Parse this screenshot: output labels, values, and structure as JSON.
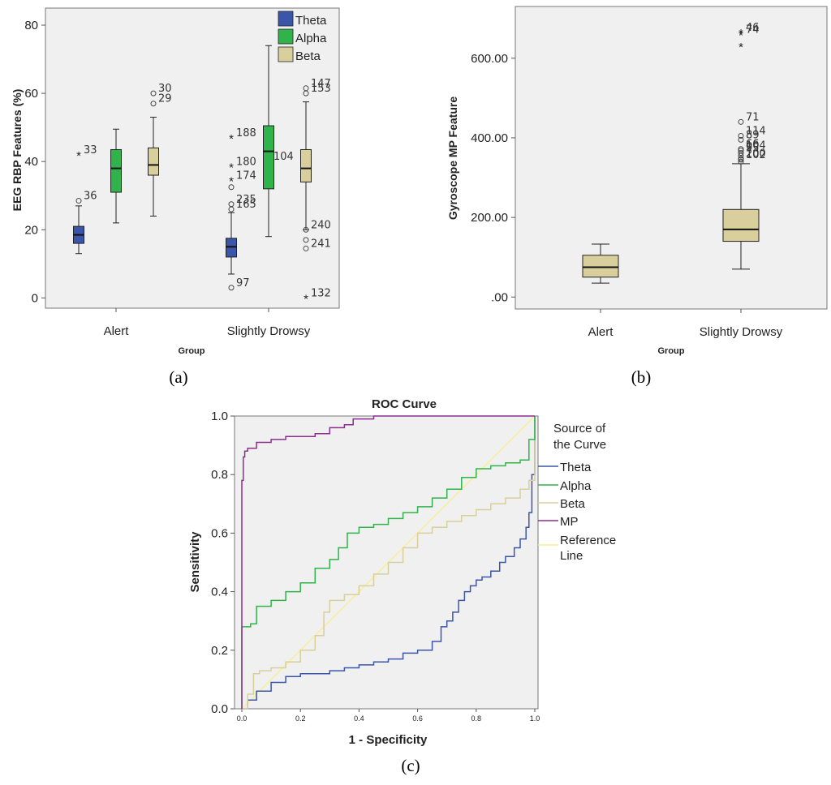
{
  "figure": {
    "panel_labels": [
      "(a)",
      "(b)",
      "(c)"
    ]
  },
  "colors": {
    "theta": "#3b56a8",
    "alpha": "#2fb34a",
    "beta": "#d8cf9c",
    "mp": "#8a2f8f",
    "reference": "#f7f08c",
    "plot_bg": "#f0f0f0"
  },
  "chart_data": [
    {
      "id": "a",
      "type": "boxplot",
      "ylabel": "EEG RBP Features (%)",
      "xlabel": "Group",
      "categories": [
        "Alert",
        "Slightly Drowsy"
      ],
      "ylim": [
        -3,
        85
      ],
      "yticks": [
        0,
        20,
        40,
        60,
        80
      ],
      "legend": {
        "position": "top-right",
        "entries": [
          "Theta",
          "Alpha",
          "Beta"
        ]
      },
      "series": [
        {
          "name": "Theta",
          "boxes": [
            {
              "category": "Alert",
              "whisker_low": 13,
              "q1": 16,
              "median": 18.5,
              "q3": 21,
              "whisker_high": 27,
              "outliers": [
                {
                  "value": 28.5,
                  "marker": "circle",
                  "label": "36"
                },
                {
                  "value": 42,
                  "marker": "star",
                  "label": "33"
                }
              ]
            },
            {
              "category": "Slightly Drowsy",
              "whisker_low": 7,
              "q1": 12,
              "median": 15,
              "q3": 17.5,
              "whisker_high": 25,
              "outliers": [
                {
                  "value": 3,
                  "marker": "circle",
                  "label": "97"
                },
                {
                  "value": 26,
                  "marker": "circle",
                  "label": "165"
                },
                {
                  "value": 27.5,
                  "marker": "circle",
                  "label": "235"
                },
                {
                  "value": 32.5,
                  "marker": "circle",
                  "label": ""
                },
                {
                  "value": 34.5,
                  "marker": "star",
                  "label": "174"
                },
                {
                  "value": 38.5,
                  "marker": "star",
                  "label": "180"
                },
                {
                  "value": 47,
                  "marker": "star",
                  "label": "188"
                }
              ]
            }
          ]
        },
        {
          "name": "Alpha",
          "boxes": [
            {
              "category": "Alert",
              "whisker_low": 22,
              "q1": 31,
              "median": 38,
              "q3": 43.5,
              "whisker_high": 49.5,
              "outliers": []
            },
            {
              "category": "Slightly Drowsy",
              "whisker_low": 18,
              "q1": 32,
              "median": 43,
              "q3": 50.5,
              "whisker_high": 74,
              "outliers": [
                {
                  "value": 40,
                  "marker": "none",
                  "label": "104"
                }
              ]
            }
          ]
        },
        {
          "name": "Beta",
          "boxes": [
            {
              "category": "Alert",
              "whisker_low": 24,
              "q1": 36,
              "median": 39,
              "q3": 44,
              "whisker_high": 53,
              "outliers": [
                {
                  "value": 57,
                  "marker": "circle",
                  "label": "29"
                },
                {
                  "value": 60,
                  "marker": "circle",
                  "label": "30"
                }
              ]
            },
            {
              "category": "Slightly Drowsy",
              "whisker_low": 20,
              "q1": 34,
              "median": 38,
              "q3": 43.5,
              "whisker_high": 57.5,
              "outliers": [
                {
                  "value": 0,
                  "marker": "star",
                  "label": "132"
                },
                {
                  "value": 14.5,
                  "marker": "circle",
                  "label": "241"
                },
                {
                  "value": 17,
                  "marker": "circle",
                  "label": ""
                },
                {
                  "value": 20,
                  "marker": "circle",
                  "label": "240"
                },
                {
                  "value": 60,
                  "marker": "circle",
                  "label": "153"
                },
                {
                  "value": 61.5,
                  "marker": "circle",
                  "label": "147"
                }
              ]
            }
          ]
        }
      ]
    },
    {
      "id": "b",
      "type": "boxplot",
      "ylabel": "Gyroscope MP Feature",
      "xlabel": "Group",
      "categories": [
        "Alert",
        "Slightly Drowsy"
      ],
      "ylim": [
        -30,
        730
      ],
      "yticks": [
        ".00",
        "200.00",
        "400.00",
        "600.00"
      ],
      "ytick_values": [
        0,
        200,
        400,
        600
      ],
      "series": [
        {
          "name": "MP",
          "boxes": [
            {
              "category": "Alert",
              "whisker_low": 35,
              "q1": 50,
              "median": 75,
              "q3": 105,
              "whisker_high": 133,
              "outliers": []
            },
            {
              "category": "Slightly Drowsy",
              "whisker_low": 70,
              "q1": 140,
              "median": 170,
              "q3": 220,
              "whisker_high": 335,
              "outliers": [
                {
                  "value": 340,
                  "marker": "circle",
                  "label": ""
                },
                {
                  "value": 345,
                  "marker": "circle",
                  "label": "102"
                },
                {
                  "value": 348,
                  "marker": "circle",
                  "label": "200"
                },
                {
                  "value": 355,
                  "marker": "circle",
                  "label": ""
                },
                {
                  "value": 362,
                  "marker": "circle",
                  "label": "95"
                },
                {
                  "value": 368,
                  "marker": "circle",
                  "label": "104"
                },
                {
                  "value": 372,
                  "marker": "circle",
                  "label": "66"
                },
                {
                  "value": 395,
                  "marker": "circle",
                  "label": "89"
                },
                {
                  "value": 405,
                  "marker": "circle",
                  "label": "114"
                },
                {
                  "value": 440,
                  "marker": "circle",
                  "label": "71"
                },
                {
                  "value": 630,
                  "marker": "star",
                  "label": ""
                },
                {
                  "value": 660,
                  "marker": "star",
                  "label": "74"
                },
                {
                  "value": 665,
                  "marker": "star",
                  "label": "46"
                }
              ]
            }
          ]
        }
      ]
    },
    {
      "id": "c",
      "type": "line",
      "title": "ROC Curve",
      "xlabel": "1 - Specificity",
      "ylabel": "Sensitivity",
      "xlim": [
        0,
        1
      ],
      "ylim": [
        0,
        1
      ],
      "xticks": [
        "0.0",
        "0.2",
        "0.4",
        "0.6",
        "0.8",
        "1.0"
      ],
      "yticks": [
        "0.0",
        "0.2",
        "0.4",
        "0.6",
        "0.8",
        "1.0"
      ],
      "legend": {
        "title": "Source of the Curve",
        "position": "right",
        "entries": [
          "Theta",
          "Alpha",
          "Beta",
          "MP",
          "Reference Line"
        ]
      },
      "series": [
        {
          "name": "Theta",
          "x": [
            0,
            0.02,
            0.05,
            0.1,
            0.15,
            0.2,
            0.3,
            0.35,
            0.4,
            0.45,
            0.5,
            0.55,
            0.6,
            0.65,
            0.68,
            0.7,
            0.72,
            0.74,
            0.76,
            0.78,
            0.8,
            0.82,
            0.85,
            0.88,
            0.9,
            0.93,
            0.95,
            0.97,
            0.98,
            0.99,
            1.0
          ],
          "y": [
            0,
            0.03,
            0.06,
            0.09,
            0.11,
            0.12,
            0.13,
            0.14,
            0.15,
            0.16,
            0.17,
            0.19,
            0.2,
            0.23,
            0.28,
            0.3,
            0.33,
            0.37,
            0.4,
            0.42,
            0.44,
            0.45,
            0.47,
            0.5,
            0.52,
            0.55,
            0.58,
            0.62,
            0.67,
            0.8,
            1.0
          ]
        },
        {
          "name": "Alpha",
          "x": [
            0,
            0,
            0.03,
            0.05,
            0.1,
            0.15,
            0.2,
            0.25,
            0.3,
            0.33,
            0.36,
            0.4,
            0.45,
            0.5,
            0.55,
            0.6,
            0.65,
            0.7,
            0.75,
            0.8,
            0.85,
            0.9,
            0.95,
            0.98,
            1.0
          ],
          "y": [
            0,
            0.28,
            0.29,
            0.35,
            0.37,
            0.4,
            0.43,
            0.48,
            0.51,
            0.55,
            0.6,
            0.62,
            0.63,
            0.65,
            0.67,
            0.69,
            0.72,
            0.75,
            0.79,
            0.82,
            0.83,
            0.84,
            0.85,
            0.92,
            1.0
          ]
        },
        {
          "name": "Beta",
          "x": [
            0,
            0.02,
            0.04,
            0.06,
            0.1,
            0.15,
            0.2,
            0.25,
            0.28,
            0.3,
            0.35,
            0.4,
            0.45,
            0.5,
            0.55,
            0.6,
            0.65,
            0.7,
            0.75,
            0.8,
            0.85,
            0.9,
            0.95,
            0.98,
            1.0
          ],
          "y": [
            0,
            0.05,
            0.12,
            0.13,
            0.14,
            0.16,
            0.2,
            0.25,
            0.33,
            0.37,
            0.39,
            0.42,
            0.46,
            0.5,
            0.55,
            0.6,
            0.62,
            0.64,
            0.66,
            0.68,
            0.7,
            0.72,
            0.75,
            0.78,
            1.0
          ]
        },
        {
          "name": "MP",
          "x": [
            0,
            0,
            0.005,
            0.01,
            0.02,
            0.05,
            0.1,
            0.15,
            0.2,
            0.25,
            0.3,
            0.35,
            0.38,
            0.4,
            0.45,
            0.5,
            0.6,
            0.7,
            0.8,
            0.9,
            1.0
          ],
          "y": [
            0,
            0.78,
            0.86,
            0.88,
            0.89,
            0.91,
            0.92,
            0.93,
            0.93,
            0.94,
            0.96,
            0.97,
            0.99,
            0.99,
            1.0,
            1.0,
            1.0,
            1.0,
            1.0,
            1.0,
            1.0
          ]
        },
        {
          "name": "Reference Line",
          "x": [
            0,
            1
          ],
          "y": [
            0,
            1
          ]
        }
      ]
    }
  ]
}
